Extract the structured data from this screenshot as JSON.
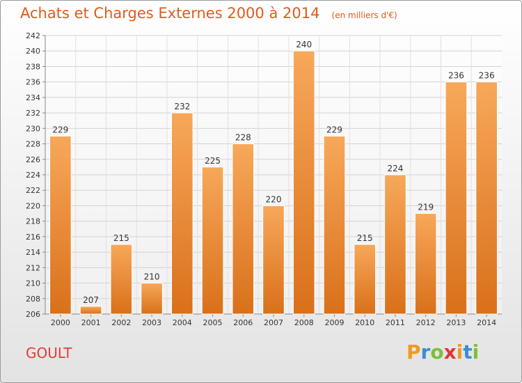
{
  "chart_data": {
    "type": "bar",
    "title": "Achats et Charges Externes 2000 à 2014",
    "subtitle": "(en milliers d'€)",
    "categories": [
      "2000",
      "2001",
      "2002",
      "2003",
      "2004",
      "2005",
      "2006",
      "2007",
      "2008",
      "2009",
      "2010",
      "2011",
      "2012",
      "2013",
      "2014"
    ],
    "values": [
      229,
      207,
      215,
      210,
      232,
      225,
      228,
      220,
      240,
      229,
      215,
      224,
      219,
      236,
      236
    ],
    "ylim": [
      206,
      242
    ],
    "yticks": [
      206,
      208,
      210,
      212,
      214,
      216,
      218,
      220,
      222,
      224,
      226,
      228,
      230,
      232,
      234,
      236,
      238,
      240,
      242
    ],
    "grid": true,
    "bar_color": "#f08a2c",
    "bar_color_light": "#f7a85a",
    "bar_color_dark": "#d9701a"
  },
  "commune": "GOULT",
  "logo": {
    "letters": [
      "P",
      "r",
      "o",
      "x",
      "i",
      "t",
      "i"
    ],
    "colors": [
      "#f29a1e",
      "#3a8fd1",
      "#7bbf3a",
      "#e3342f",
      "#f29a1e",
      "#3a8fd1",
      "#7bbf3a"
    ]
  }
}
